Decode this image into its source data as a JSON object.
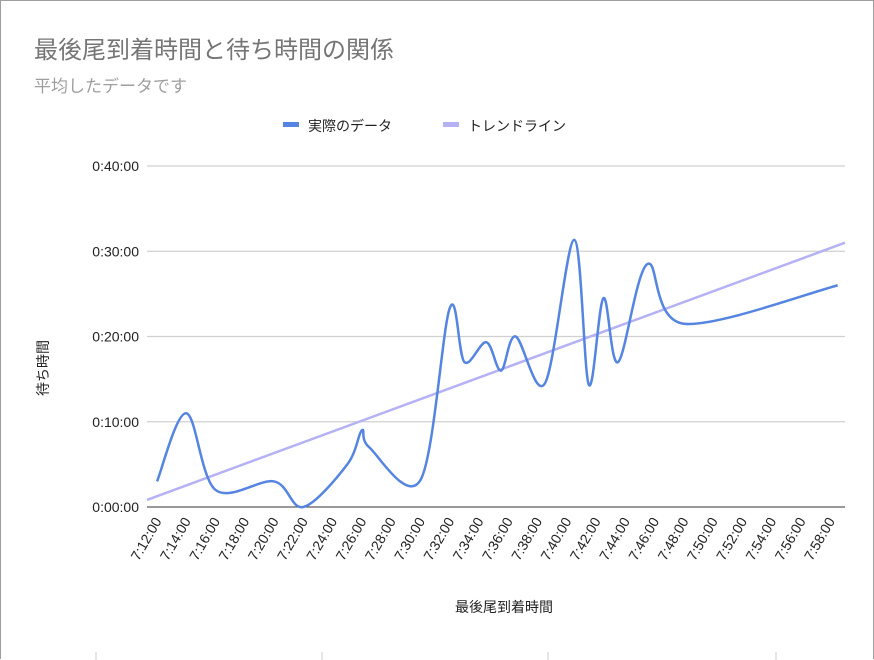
{
  "chart_data": {
    "type": "line",
    "title": "最後尾到着時間と待ち時間の関係",
    "subtitle": "平均したデータです",
    "xlabel": "最後尾到着時間",
    "ylabel": "待ち時間",
    "legend_position": "top",
    "grid": true,
    "xlim": [
      "7:11:19",
      "7:59:00"
    ],
    "ylim": [
      "0:00:00",
      "0:40:00"
    ],
    "y_ticks": [
      "0:00:00",
      "0:10:00",
      "0:20:00",
      "0:30:00",
      "0:40:00"
    ],
    "x_ticks": [
      "7:12:00",
      "7:14:00",
      "7:16:00",
      "7:18:00",
      "7:20:00",
      "7:22:00",
      "7:24:00",
      "7:26:00",
      "7:28:00",
      "7:30:00",
      "7:32:00",
      "7:34:00",
      "7:36:00",
      "7:38:00",
      "7:40:00",
      "7:42:00",
      "7:44:00",
      "7:46:00",
      "7:48:00",
      "7:50:00",
      "7:52:00",
      "7:54:00",
      "7:56:00",
      "7:58:00"
    ],
    "series": [
      {
        "name": "実際のデータ",
        "color": "#5585e0",
        "smooth": true,
        "x": [
          "7:12:00",
          "7:14:00",
          "7:16:00",
          "7:20:00",
          "7:22:00",
          "7:25:00",
          "7:26:00",
          "7:26:30",
          "7:30:00",
          "7:32:00",
          "7:33:00",
          "7:34:30",
          "7:35:30",
          "7:36:30",
          "7:38:30",
          "7:40:30",
          "7:41:30",
          "7:42:30",
          "7:43:30",
          "7:45:30",
          "7:48:00",
          "7:58:30"
        ],
        "y": [
          "0:03:00",
          "0:11:00",
          "0:02:00",
          "0:03:00",
          "0:00:00",
          "0:05:00",
          "0:09:00",
          "0:07:00",
          "0:03:10",
          "0:23:20",
          "0:17:00",
          "0:19:20",
          "0:16:00",
          "0:20:00",
          "0:14:30",
          "0:31:20",
          "0:14:20",
          "0:24:30",
          "0:17:00",
          "0:28:30",
          "0:21:30",
          "0:26:00"
        ]
      },
      {
        "name": "トレンドライン",
        "color": "#b4b2f5",
        "x": [
          "7:11:19",
          "7:59:00"
        ],
        "y": [
          "0:00:50",
          "0:31:00"
        ]
      }
    ]
  }
}
